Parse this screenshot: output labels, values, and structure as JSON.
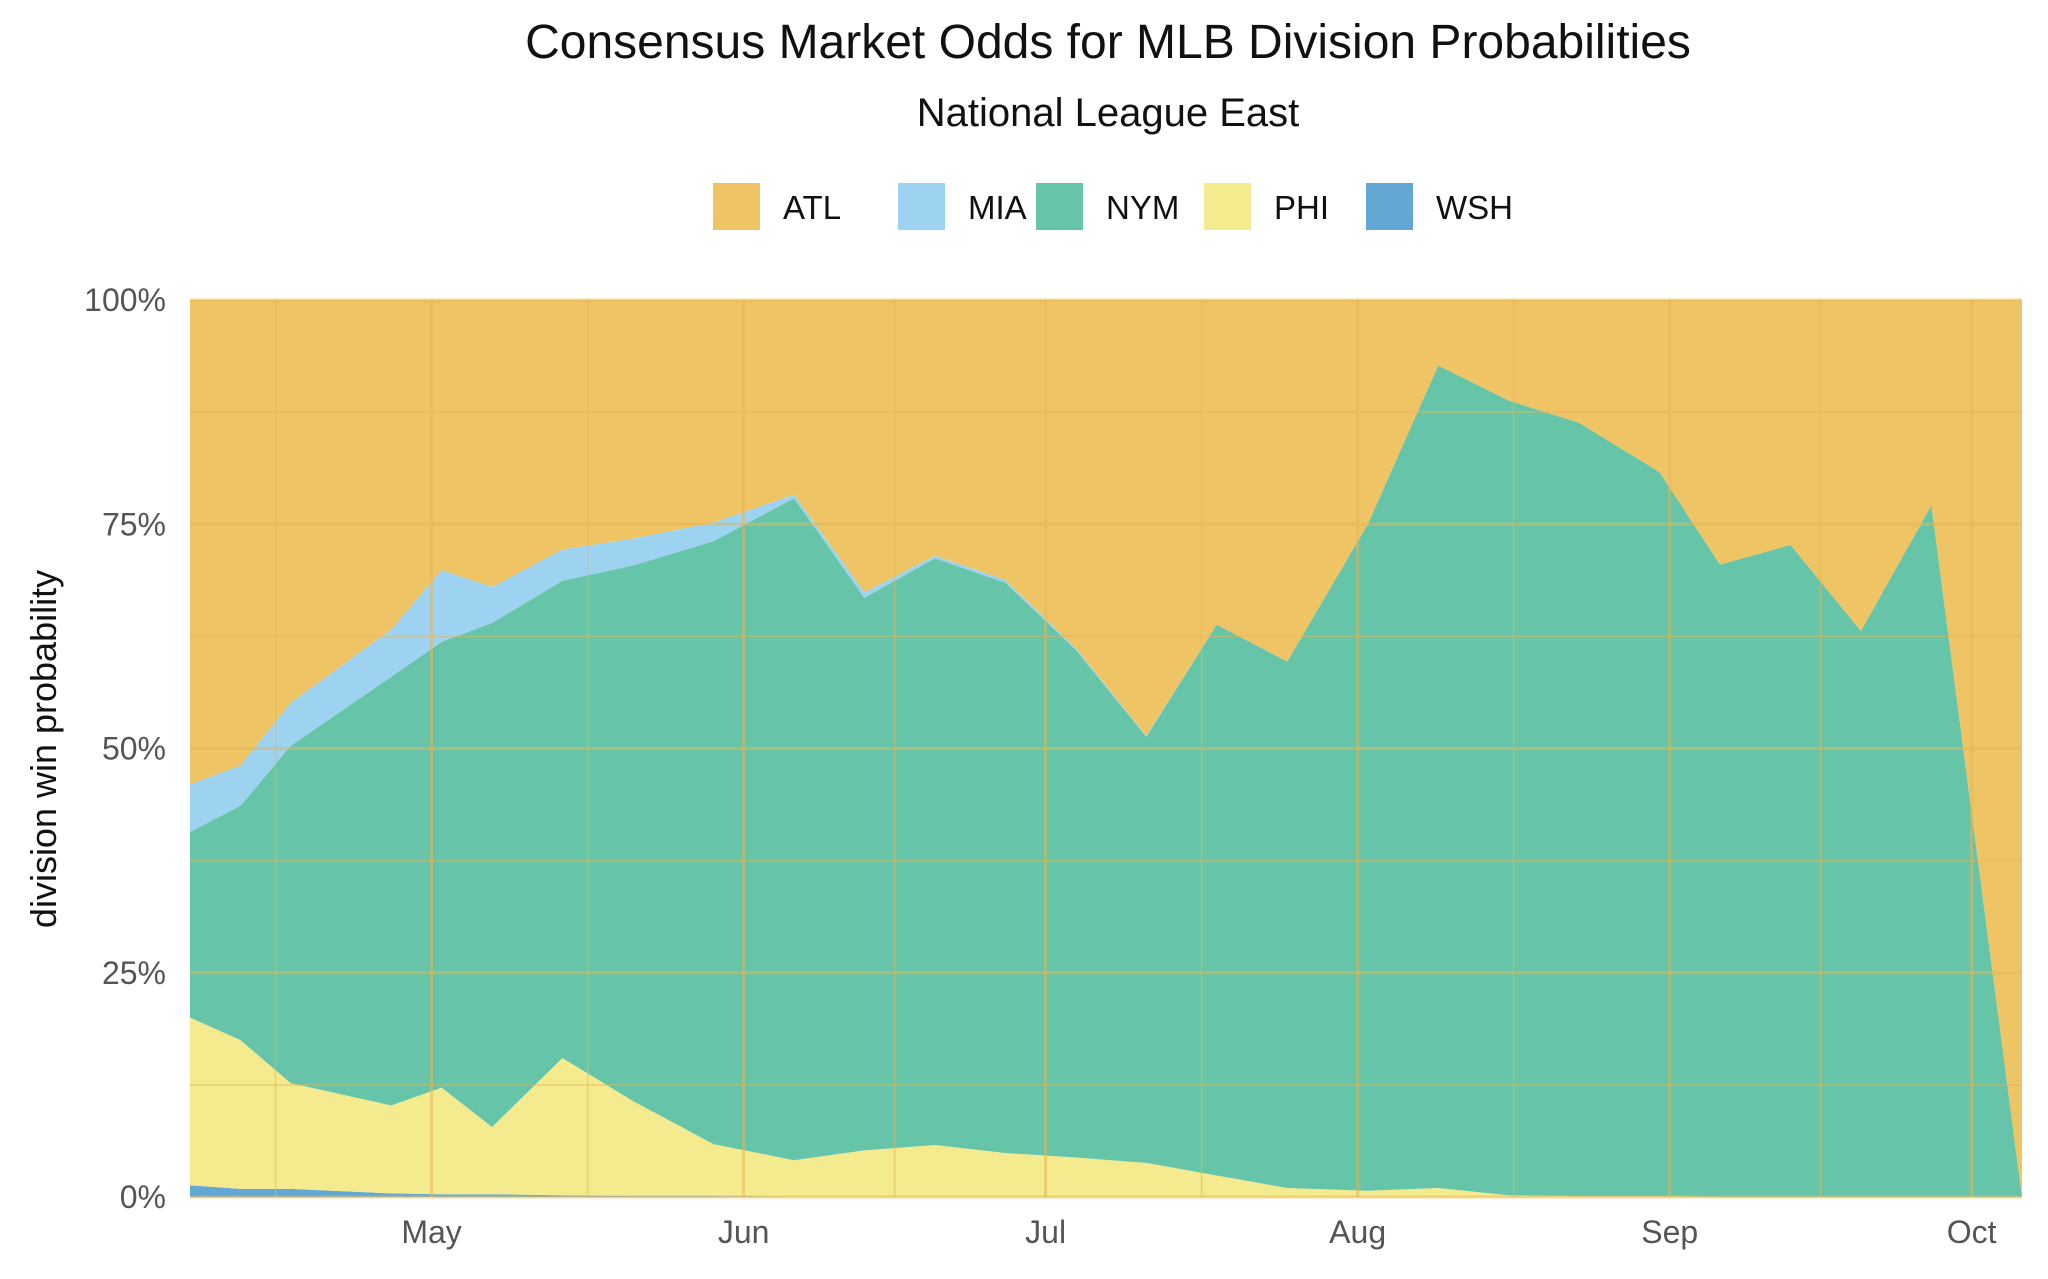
{
  "colors": {
    "ATL": "#EFC465",
    "MIA": "#9DD3F1",
    "NYM": "#66C5A9",
    "PHI": "#F4EB8F",
    "WSH": "#63A8D4",
    "grid": "#E3B757",
    "axis_text": "#555555"
  },
  "chart_data": {
    "type": "area",
    "stacked": "fill",
    "title": "Consensus Market Odds for MLB Division Probabilities",
    "subtitle": "National League East",
    "xlabel": "",
    "ylabel": "division win probability",
    "ylim": [
      0,
      1
    ],
    "yticks": [
      0,
      0.25,
      0.5,
      0.75,
      1
    ],
    "ytick_labels": [
      "0%",
      "25%",
      "50%",
      "75%",
      "100%"
    ],
    "xlim": [
      "2022-04-07",
      "2022-10-06"
    ],
    "xticks": [
      {
        "date": "2022-05-01",
        "label": "May"
      },
      {
        "date": "2022-06-01",
        "label": "Jun"
      },
      {
        "date": "2022-07-01",
        "label": "Jul"
      },
      {
        "date": "2022-08-01",
        "label": "Aug"
      },
      {
        "date": "2022-09-01",
        "label": "Sep"
      },
      {
        "date": "2022-10-01",
        "label": "Oct"
      }
    ],
    "legend": {
      "position": "top",
      "order": [
        "ATL",
        "MIA",
        "NYM",
        "PHI",
        "WSH"
      ]
    },
    "stack_order": [
      "WSH",
      "PHI",
      "NYM",
      "MIA",
      "ATL"
    ],
    "dates": [
      "2022-04-07",
      "2022-04-12",
      "2022-04-17",
      "2022-04-27",
      "2022-05-02",
      "2022-05-07",
      "2022-05-14",
      "2022-05-21",
      "2022-05-29",
      "2022-06-06",
      "2022-06-13",
      "2022-06-20",
      "2022-06-27",
      "2022-07-04",
      "2022-07-11",
      "2022-07-18",
      "2022-07-25",
      "2022-08-02",
      "2022-08-09",
      "2022-08-16",
      "2022-08-23",
      "2022-08-31",
      "2022-09-06",
      "2022-09-13",
      "2022-09-20",
      "2022-09-27",
      "2022-10-06"
    ],
    "series": [
      {
        "name": "WSH",
        "values": [
          0.013,
          0.009,
          0.009,
          0.004,
          0.003,
          0.003,
          0.002,
          0.001,
          0.001,
          0,
          0,
          0,
          0,
          0,
          0,
          0,
          0,
          0,
          0,
          0,
          0,
          0,
          0,
          0,
          0,
          0,
          0
        ]
      },
      {
        "name": "PHI",
        "values": [
          0.187,
          0.166,
          0.118,
          0.098,
          0.119,
          0.075,
          0.153,
          0.106,
          0.058,
          0.041,
          0.052,
          0.058,
          0.049,
          0.044,
          0.038,
          0.024,
          0.01,
          0.007,
          0.01,
          0.002,
          0.001,
          0.001,
          0,
          0,
          0,
          0,
          0
        ]
      },
      {
        "name": "NYM",
        "values": [
          0.207,
          0.261,
          0.376,
          0.478,
          0.497,
          0.562,
          0.532,
          0.597,
          0.672,
          0.738,
          0.616,
          0.654,
          0.636,
          0.566,
          0.475,
          0.614,
          0.587,
          0.743,
          0.917,
          0.886,
          0.862,
          0.807,
          0.705,
          0.727,
          0.631,
          0.771,
          0
        ]
      },
      {
        "name": "MIA",
        "values": [
          0.053,
          0.045,
          0.048,
          0.053,
          0.08,
          0.04,
          0.035,
          0.03,
          0.021,
          0.004,
          0.006,
          0.003,
          0.003,
          0.002,
          0.001,
          0,
          0,
          0,
          0,
          0,
          0,
          0,
          0,
          0,
          0,
          0,
          0
        ]
      },
      {
        "name": "ATL",
        "values": [
          0.54,
          0.519,
          0.449,
          0.367,
          0.301,
          0.32,
          0.278,
          0.266,
          0.248,
          0.217,
          0.326,
          0.285,
          0.312,
          0.388,
          0.486,
          0.362,
          0.403,
          0.25,
          0.073,
          0.112,
          0.137,
          0.192,
          0.295,
          0.273,
          0.369,
          0.229,
          1.0
        ]
      }
    ]
  }
}
